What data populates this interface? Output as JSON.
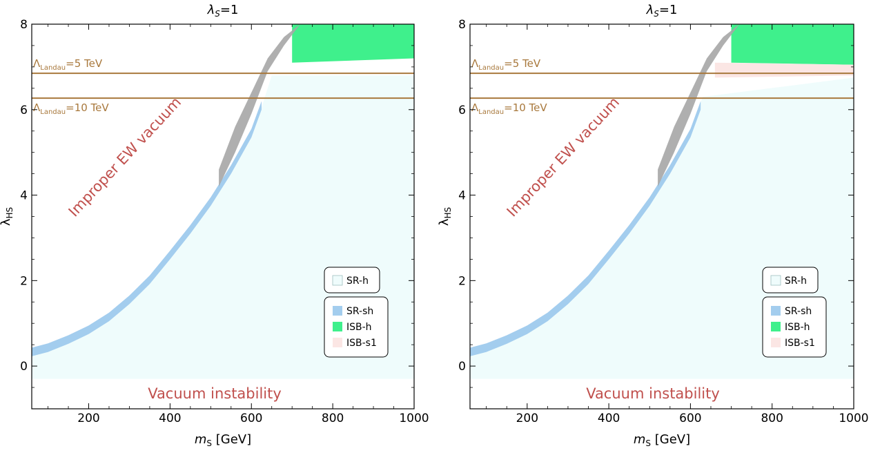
{
  "chart_data": [
    {
      "type": "scatter",
      "title": "λ_S=1",
      "title_parts": {
        "base": "λ",
        "sub": "S",
        "rest": "=1"
      },
      "xlabel": "m_S [GeV]",
      "xlabel_parts": {
        "base": "m",
        "sub": "S",
        "rest": " [GeV]"
      },
      "ylabel": "λ_HS",
      "ylabel_parts": {
        "base": "λ",
        "sub": "HS"
      },
      "xlim": [
        60,
        1000
      ],
      "ylim": [
        -1,
        8
      ],
      "xticks": [
        200,
        400,
        600,
        800,
        1000
      ],
      "yticks": [
        0,
        2,
        4,
        6,
        8
      ],
      "landau_lines": [
        {
          "y": 6.85,
          "label": {
            "base": "Λ",
            "sub": "Landau",
            "rest": "=5 TeV"
          }
        },
        {
          "y": 6.27,
          "label": {
            "base": "Λ",
            "sub": "Landau",
            "rest": "=10 TeV"
          }
        }
      ],
      "region_labels": {
        "improper": "Improper EW vacuum",
        "instability": "Vacuum instability"
      },
      "legend": {
        "top": [
          "SR-h"
        ],
        "bottom": [
          "SR-sh",
          "ISB-h",
          "ISB-s1"
        ]
      },
      "colors": {
        "SR-h": "#effcfc",
        "SR-sh": "#a3cdee",
        "ISB-h": "#3ff08c",
        "ISB-s1": "#fbe6e4",
        "grey": "#a6a6a6",
        "landau": "#a8783c",
        "label": "#c0504d"
      },
      "series": [
        {
          "name": "SR-h",
          "x": [
            60,
            150,
            250,
            350,
            450,
            550,
            620,
            650,
            1000
          ],
          "y_lower": [
            -0.3,
            -0.3,
            -0.3,
            -0.3,
            -0.3,
            -0.3,
            -0.3,
            -0.3,
            -0.3
          ],
          "y_upper": [
            0.25,
            0.6,
            1.2,
            2.05,
            3.15,
            4.5,
            5.9,
            6.8,
            6.8
          ]
        },
        {
          "name": "SR-sh",
          "x": [
            60,
            100,
            150,
            200,
            250,
            300,
            350,
            400,
            450,
            500,
            550,
            600,
            625
          ],
          "y_center": [
            0.33,
            0.43,
            0.62,
            0.85,
            1.15,
            1.55,
            2.02,
            2.6,
            3.2,
            3.85,
            4.6,
            5.45,
            6.1
          ],
          "width": 0.2
        },
        {
          "name": "ISB-h",
          "x": [
            700,
            1000
          ],
          "y_lower": [
            7.1,
            7.2
          ],
          "y_upper": [
            8,
            8
          ]
        },
        {
          "name": "grey",
          "x": [
            520,
            560,
            600,
            640,
            680,
            720,
            750
          ],
          "y_lower": [
            4.2,
            5.0,
            5.9,
            6.9,
            7.5,
            8.0,
            8.0
          ],
          "y_upper": [
            4.6,
            5.6,
            6.4,
            7.2,
            7.7,
            8.0,
            8.0
          ]
        }
      ]
    },
    {
      "type": "scatter",
      "title": "λ_S=1",
      "title_parts": {
        "base": "λ",
        "sub": "S",
        "rest": "=1"
      },
      "xlabel": "m_S [GeV]",
      "xlabel_parts": {
        "base": "m",
        "sub": "S",
        "rest": " [GeV]"
      },
      "ylabel": "λ_HS",
      "ylabel_parts": {
        "base": "λ",
        "sub": "HS"
      },
      "xlim": [
        60,
        1000
      ],
      "ylim": [
        -1,
        8
      ],
      "xticks": [
        200,
        400,
        600,
        800,
        1000
      ],
      "yticks": [
        0,
        2,
        4,
        6,
        8
      ],
      "landau_lines": [
        {
          "y": 6.85,
          "label": {
            "base": "Λ",
            "sub": "Landau",
            "rest": "=5 TeV"
          }
        },
        {
          "y": 6.27,
          "label": {
            "base": "Λ",
            "sub": "Landau",
            "rest": "=10 TeV"
          }
        }
      ],
      "region_labels": {
        "improper": "Improper EW vacuum",
        "instability": "Vacuum instability"
      },
      "legend": {
        "top": [
          "SR-h"
        ],
        "bottom": [
          "SR-sh",
          "ISB-h",
          "ISB-s1"
        ]
      },
      "colors": {
        "SR-h": "#effcfc",
        "SR-sh": "#a3cdee",
        "ISB-h": "#3ff08c",
        "ISB-s1": "#fbe6e4",
        "grey": "#a6a6a6",
        "landau": "#a8783c",
        "label": "#c0504d"
      },
      "series": [
        {
          "name": "SR-h",
          "x": [
            60,
            150,
            250,
            350,
            450,
            550,
            600,
            630,
            1000
          ],
          "y_lower": [
            -0.3,
            -0.3,
            -0.3,
            -0.3,
            -0.3,
            -0.3,
            -0.3,
            -0.3,
            -0.3
          ],
          "y_upper": [
            0.25,
            0.6,
            1.2,
            2.05,
            3.15,
            4.5,
            5.5,
            6.3,
            6.75
          ]
        },
        {
          "name": "SR-sh",
          "x": [
            60,
            100,
            150,
            200,
            250,
            300,
            350,
            400,
            450,
            500,
            550,
            600,
            625
          ],
          "y_center": [
            0.33,
            0.43,
            0.62,
            0.85,
            1.15,
            1.55,
            2.02,
            2.6,
            3.2,
            3.85,
            4.6,
            5.45,
            6.1
          ],
          "width": 0.2
        },
        {
          "name": "ISB-h",
          "x": [
            700,
            1000
          ],
          "y_lower": [
            7.1,
            7.05
          ],
          "y_upper": [
            8,
            8
          ]
        },
        {
          "name": "ISB-s1",
          "x": [
            660,
            1000
          ],
          "y_lower": [
            6.75,
            6.8
          ],
          "y_upper": [
            7.1,
            7.05
          ]
        },
        {
          "name": "grey",
          "x": [
            520,
            560,
            600,
            640,
            680,
            720,
            750
          ],
          "y_lower": [
            4.2,
            5.0,
            5.9,
            6.9,
            7.5,
            8.0,
            8.0
          ],
          "y_upper": [
            4.6,
            5.6,
            6.4,
            7.2,
            7.7,
            8.0,
            8.0
          ]
        }
      ]
    }
  ]
}
